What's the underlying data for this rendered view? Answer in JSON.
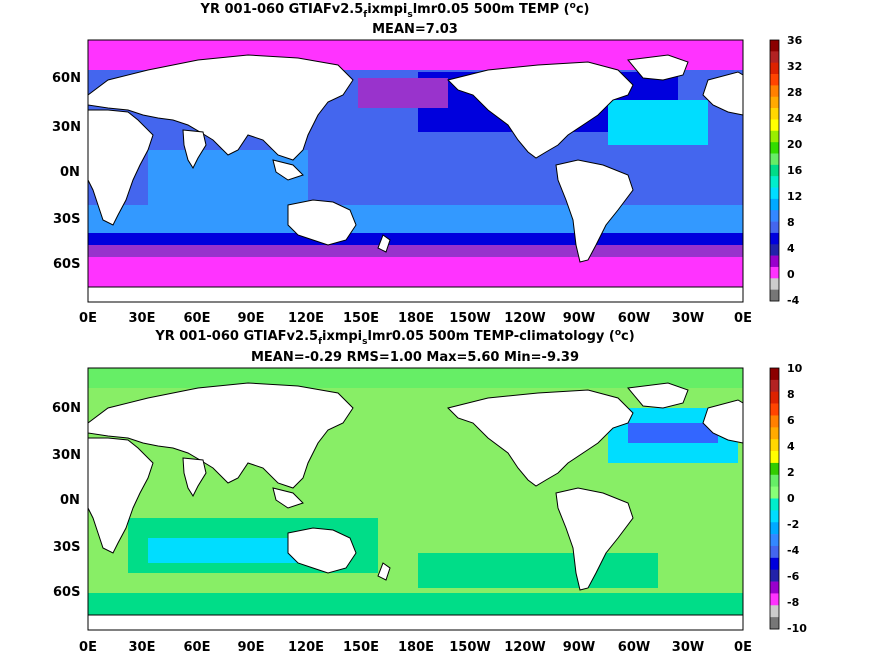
{
  "panels": [
    {
      "id": "top",
      "title_prefix": "YR 001-060 GTIAFv2.5",
      "title_sub1": "f",
      "title_mid": "ixmpi",
      "title_sub2": "s",
      "title_suffix": "lmr0.05 500m TEMP (",
      "title_sup": "o",
      "title_end": "c)",
      "stats": "MEAN=7.03",
      "lat_labels": [
        "60N",
        "30N",
        "0N",
        "30S",
        "60S"
      ],
      "lon_labels": [
        "0E",
        "30E",
        "60E",
        "90E",
        "120E",
        "150E",
        "180E",
        "150W",
        "120W",
        "90W",
        "60W",
        "30W",
        "0E"
      ],
      "colorbar_ticks": [
        "36",
        "32",
        "28",
        "24",
        "20",
        "16",
        "12",
        "8",
        "4",
        "0",
        "-4"
      ],
      "colorbar_colors": [
        "#8b0000",
        "#b22222",
        "#dd2200",
        "#ff4400",
        "#ff8000",
        "#ffaa00",
        "#ffd700",
        "#ffff00",
        "#99ee00",
        "#33dd00",
        "#66ee66",
        "#00dd88",
        "#00eecc",
        "#00ddff",
        "#00aaff",
        "#3388ff",
        "#4466ee",
        "#0000dd",
        "#2222aa",
        "#9900cc",
        "#ff33ff",
        "#cccccc",
        "#777777"
      ]
    },
    {
      "id": "bottom",
      "title_prefix": "YR 001-060 GTIAFv2.5",
      "title_sub1": "f",
      "title_mid": "ixmpi",
      "title_sub2": "s",
      "title_suffix": "lmr0.05 500m TEMP-climatology (",
      "title_sup": "o",
      "title_end": "c)",
      "stats": "MEAN=-0.29   RMS=1.00   Max=5.60   Min=-9.39",
      "lat_labels": [
        "60N",
        "30N",
        "0N",
        "30S",
        "60S"
      ],
      "lon_labels": [
        "0E",
        "30E",
        "60E",
        "90E",
        "120E",
        "150E",
        "180E",
        "150W",
        "120W",
        "90W",
        "60W",
        "30W",
        "0E"
      ],
      "colorbar_ticks": [
        "10",
        "8",
        "6",
        "4",
        "2",
        "0",
        "-2",
        "-4",
        "-6",
        "-8",
        "-10"
      ],
      "colorbar_colors": [
        "#8b0000",
        "#b22222",
        "#dd2200",
        "#ff4400",
        "#ff8000",
        "#ffaa00",
        "#ffd700",
        "#ffff00",
        "#33cc00",
        "#66ee66",
        "#88ff77",
        "#00eecc",
        "#00ddff",
        "#00aaff",
        "#3388ff",
        "#4466ee",
        "#0000dd",
        "#2222aa",
        "#9900cc",
        "#ff33ff",
        "#cccccc",
        "#777777"
      ]
    }
  ],
  "map_colors": {
    "top_base": "#4466ee",
    "top_polar": "#ff33ff",
    "top_purple": "#9933cc",
    "top_band": "#0000dd",
    "top_warm": "#3399ff",
    "top_cyan": "#00ddff",
    "bottom_base": "#88ee66",
    "bottom_green": "#66ee66",
    "bottom_teal": "#00dd88",
    "bottom_cyan": "#00ddff",
    "bottom_blue": "#3366ff",
    "land": "#ffffff",
    "coast": "#000000"
  }
}
